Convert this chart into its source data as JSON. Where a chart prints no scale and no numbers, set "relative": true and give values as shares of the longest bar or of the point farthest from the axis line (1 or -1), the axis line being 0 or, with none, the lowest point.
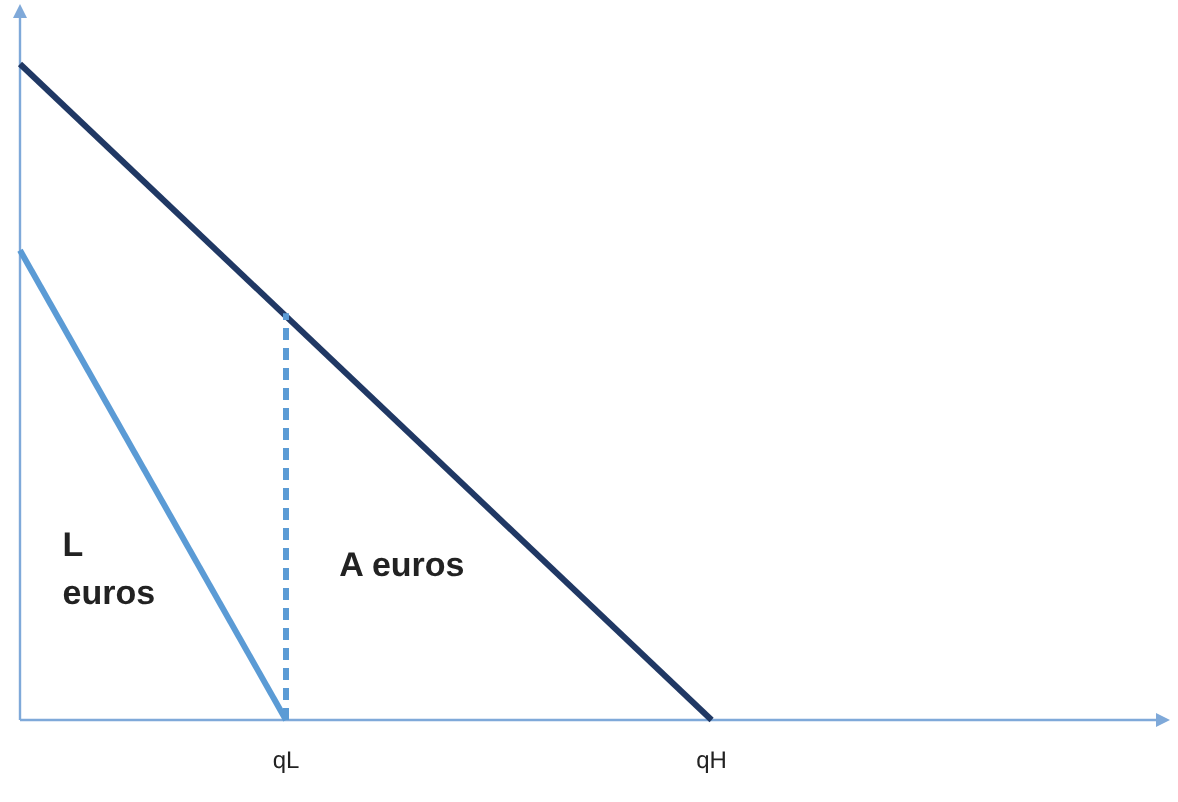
{
  "chart_data": {
    "type": "line",
    "relative": true,
    "categories": [
      null,
      null,
      null,
      null,
      null,
      "qL",
      null,
      null,
      null,
      null,
      null,
      null,
      null,
      "qH",
      null,
      null,
      null,
      null,
      null,
      null,
      null,
      null
    ],
    "marker": "none",
    "grid": false,
    "series": [
      {
        "color": "#203864",
        "values": [
          1,
          null,
          null,
          null,
          null,
          null,
          null,
          null,
          null,
          null,
          null,
          null,
          null,
          0,
          null,
          null,
          null,
          null,
          null,
          null,
          null,
          null
        ]
      },
      {
        "color": "#5b9bd5",
        "values": [
          0.716,
          null,
          null,
          null,
          null,
          0,
          null,
          null,
          null,
          null,
          null,
          null,
          null,
          null,
          null,
          null,
          null,
          null,
          null,
          null,
          null,
          null
        ]
      },
      {
        "color": "#5b9bd5",
        "x": [
          "qL",
          "qL"
        ],
        "values": [
          0,
          0.62
        ],
        "line_style": "dashed"
      }
    ],
    "annotations": [
      "L\neuros",
      "A euros"
    ]
  }
}
